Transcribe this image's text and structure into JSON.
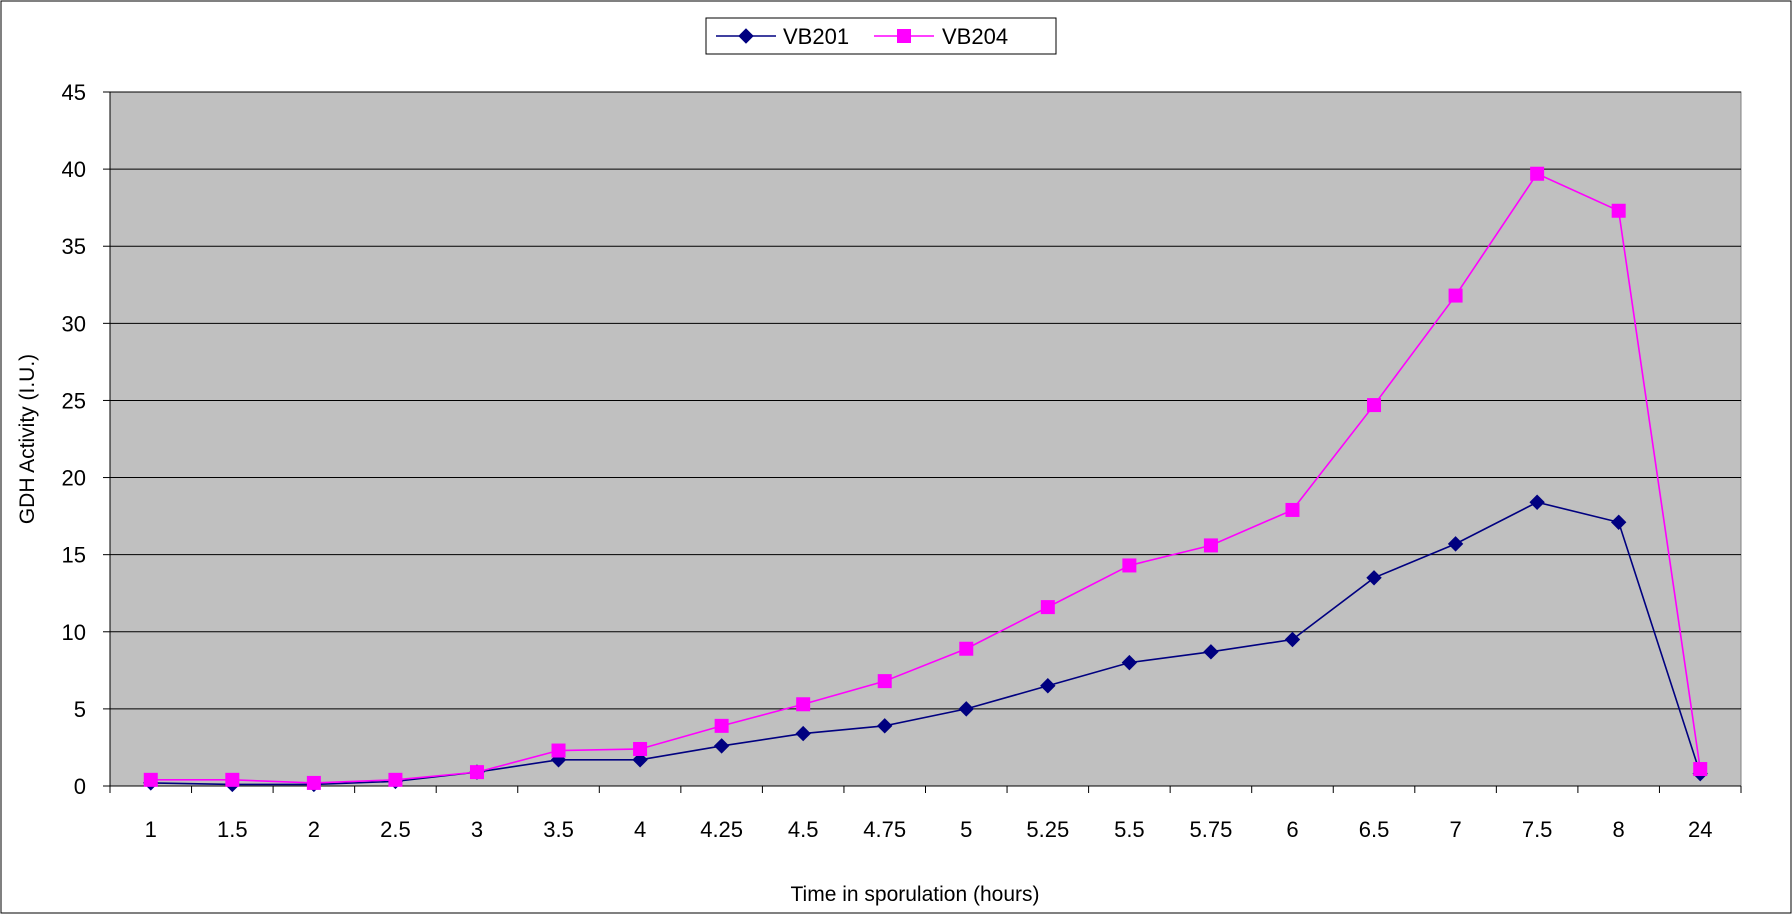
{
  "chart_data": {
    "type": "line",
    "title": "",
    "xlabel": "Time in sporulation (hours)",
    "ylabel": "GDH Activity (I.U.)",
    "ylim": [
      0,
      45
    ],
    "yticks": [
      0,
      5,
      10,
      15,
      20,
      25,
      30,
      35,
      40,
      45
    ],
    "categories": [
      "1",
      "1.5",
      "2",
      "2.5",
      "3",
      "3.5",
      "4",
      "4.25",
      "4.5",
      "4.75",
      "5",
      "5.25",
      "5.5",
      "5.75",
      "6",
      "6.5",
      "7",
      "7.5",
      "8",
      "24"
    ],
    "grid": true,
    "legend": "top-center",
    "plot_background": "#c0c0c0",
    "series": [
      {
        "name": "VB201",
        "color": "#000080",
        "marker": "diamond",
        "values": [
          0.2,
          0.1,
          0.1,
          0.3,
          0.9,
          1.7,
          1.7,
          2.6,
          3.4,
          3.9,
          5.0,
          6.5,
          8.0,
          8.7,
          9.5,
          13.5,
          15.7,
          18.4,
          17.1,
          0.8
        ]
      },
      {
        "name": "VB204",
        "color": "#ff00ff",
        "marker": "square",
        "values": [
          0.4,
          0.4,
          0.2,
          0.4,
          0.9,
          2.3,
          2.4,
          3.9,
          5.3,
          6.8,
          8.9,
          11.6,
          14.3,
          15.6,
          17.9,
          24.7,
          31.8,
          39.7,
          37.3,
          1.1
        ]
      }
    ]
  }
}
